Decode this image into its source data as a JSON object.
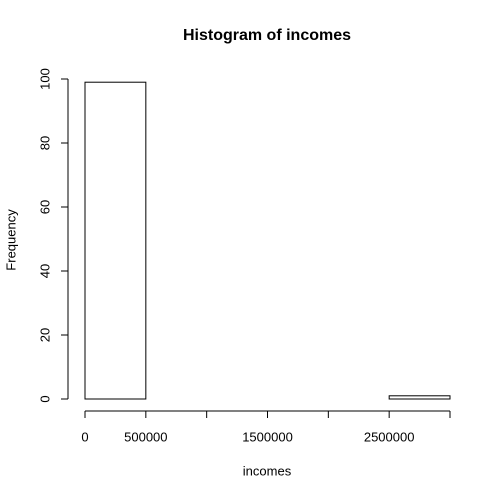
{
  "chart_data": {
    "type": "histogram",
    "title": "Histogram of incomes",
    "xlabel": "incomes",
    "ylabel": "Frequency",
    "bins": [
      0,
      500000,
      1000000,
      1500000,
      2000000,
      2500000,
      3000000
    ],
    "counts": [
      99,
      0,
      0,
      0,
      0,
      1
    ],
    "color": "#ffffff",
    "xlim": [
      0,
      3000000
    ],
    "ylim": [
      0,
      100
    ],
    "xticks": [
      0,
      500000,
      1500000,
      2500000
    ],
    "yticks": [
      0,
      20,
      40,
      60,
      80,
      100
    ]
  }
}
